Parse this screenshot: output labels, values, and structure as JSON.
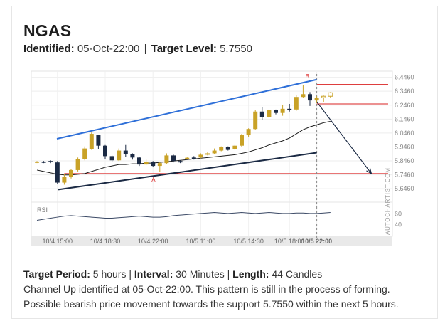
{
  "header": {
    "symbol": "NGAS",
    "identified_label": "Identified:",
    "identified_value": "05-Oct-22:00",
    "separator": "|",
    "target_label": "Target Level:",
    "target_value": "5.7550"
  },
  "chart_data": {
    "type": "candlestick",
    "y_ticks": [
      "6.4460",
      "6.3460",
      "6.2460",
      "6.1460",
      "6.0460",
      "5.9460",
      "5.8460",
      "5.7460",
      "5.6460"
    ],
    "y_tick_values": [
      6.446,
      6.346,
      6.246,
      6.146,
      6.046,
      5.946,
      5.846,
      5.746,
      5.646
    ],
    "ylim": [
      5.56,
      6.49
    ],
    "x_ticks": [
      "10/4 15:00",
      "10/4 18:30",
      "10/4 22:00",
      "10/5 11:00",
      "10/5 14:30",
      "10/5 18:00",
      "10/5 22:00"
    ],
    "rsi_label": "RSI",
    "rsi_ticks": [
      "60",
      "40"
    ],
    "rsi_tick_values": [
      60,
      40
    ],
    "rsi_values": [
      48,
      50,
      52,
      54,
      56,
      57,
      56,
      55,
      54,
      53,
      52,
      52,
      53,
      54,
      55,
      56,
      55,
      54,
      54,
      55,
      57,
      58,
      59,
      60,
      61,
      62,
      63,
      62,
      61,
      62,
      63,
      62,
      61,
      62,
      63,
      62,
      61,
      61,
      62,
      62,
      61,
      61,
      62,
      63
    ],
    "candles": [
      {
        "o": 5.835,
        "h": 5.845,
        "l": 5.83,
        "c": 5.84
      },
      {
        "o": 5.84,
        "h": 5.845,
        "l": 5.83,
        "c": 5.835
      },
      {
        "o": 5.845,
        "h": 5.85,
        "l": 5.83,
        "c": 5.84
      },
      {
        "o": 5.835,
        "h": 5.845,
        "l": 5.68,
        "c": 5.69
      },
      {
        "o": 5.69,
        "h": 5.75,
        "l": 5.675,
        "c": 5.73
      },
      {
        "o": 5.73,
        "h": 5.79,
        "l": 5.72,
        "c": 5.78
      },
      {
        "o": 5.78,
        "h": 5.87,
        "l": 5.77,
        "c": 5.86
      },
      {
        "o": 5.86,
        "h": 5.95,
        "l": 5.85,
        "c": 5.935
      },
      {
        "o": 5.93,
        "h": 6.05,
        "l": 5.925,
        "c": 6.04
      },
      {
        "o": 6.03,
        "h": 6.035,
        "l": 5.93,
        "c": 5.955
      },
      {
        "o": 5.955,
        "h": 5.96,
        "l": 5.86,
        "c": 5.88
      },
      {
        "o": 5.88,
        "h": 5.885,
        "l": 5.84,
        "c": 5.85
      },
      {
        "o": 5.85,
        "h": 5.935,
        "l": 5.845,
        "c": 5.92
      },
      {
        "o": 5.92,
        "h": 5.96,
        "l": 5.875,
        "c": 5.895
      },
      {
        "o": 5.895,
        "h": 5.9,
        "l": 5.855,
        "c": 5.87
      },
      {
        "o": 5.87,
        "h": 5.875,
        "l": 5.81,
        "c": 5.82
      },
      {
        "o": 5.82,
        "h": 5.855,
        "l": 5.815,
        "c": 5.84
      },
      {
        "o": 5.84,
        "h": 5.845,
        "l": 5.8,
        "c": 5.81
      },
      {
        "o": 5.81,
        "h": 5.84,
        "l": 5.765,
        "c": 5.83
      },
      {
        "o": 5.83,
        "h": 5.9,
        "l": 5.825,
        "c": 5.885
      },
      {
        "o": 5.885,
        "h": 5.89,
        "l": 5.835,
        "c": 5.845
      },
      {
        "o": 5.845,
        "h": 5.85,
        "l": 5.83,
        "c": 5.835
      },
      {
        "o": 5.865,
        "h": 5.875,
        "l": 5.86,
        "c": 5.868
      },
      {
        "o": 5.87,
        "h": 5.88,
        "l": 5.855,
        "c": 5.86
      },
      {
        "o": 5.87,
        "h": 5.9,
        "l": 5.865,
        "c": 5.89
      },
      {
        "o": 5.89,
        "h": 5.91,
        "l": 5.885,
        "c": 5.9
      },
      {
        "o": 5.9,
        "h": 5.935,
        "l": 5.895,
        "c": 5.92
      },
      {
        "o": 5.92,
        "h": 5.95,
        "l": 5.915,
        "c": 5.945
      },
      {
        "o": 5.945,
        "h": 5.95,
        "l": 5.92,
        "c": 5.925
      },
      {
        "o": 5.93,
        "h": 5.96,
        "l": 5.925,
        "c": 5.955
      },
      {
        "o": 5.955,
        "h": 6.04,
        "l": 5.945,
        "c": 6.03
      },
      {
        "o": 6.03,
        "h": 6.08,
        "l": 6.02,
        "c": 6.075
      },
      {
        "o": 6.075,
        "h": 6.21,
        "l": 6.07,
        "c": 6.2
      },
      {
        "o": 6.2,
        "h": 6.23,
        "l": 6.14,
        "c": 6.16
      },
      {
        "o": 6.16,
        "h": 6.215,
        "l": 6.155,
        "c": 6.21
      },
      {
        "o": 6.21,
        "h": 6.215,
        "l": 6.18,
        "c": 6.19
      },
      {
        "o": 6.19,
        "h": 6.25,
        "l": 6.17,
        "c": 6.22
      },
      {
        "o": 6.22,
        "h": 6.255,
        "l": 6.2,
        "c": 6.215
      },
      {
        "o": 6.215,
        "h": 6.32,
        "l": 6.205,
        "c": 6.305
      },
      {
        "o": 6.305,
        "h": 6.39,
        "l": 6.3,
        "c": 6.325
      },
      {
        "o": 6.325,
        "h": 6.34,
        "l": 6.24,
        "c": 6.28
      },
      {
        "o": 6.28,
        "h": 6.31,
        "l": 6.26,
        "c": 6.3
      },
      {
        "o": 6.3,
        "h": 6.315,
        "l": 6.27,
        "c": 6.31
      },
      {
        "o": 6.31,
        "h": 6.34,
        "l": 6.3,
        "c": 6.335
      }
    ],
    "ma": [
      5.78,
      5.77,
      5.76,
      5.75,
      5.745,
      5.745,
      5.75,
      5.755,
      5.77,
      5.785,
      5.8,
      5.81,
      5.82,
      5.82,
      5.825,
      5.825,
      5.83,
      5.83,
      5.835,
      5.84,
      5.845,
      5.85,
      5.855,
      5.86,
      5.865,
      5.87,
      5.875,
      5.88,
      5.885,
      5.89,
      5.9,
      5.91,
      5.925,
      5.94,
      5.96,
      5.975,
      5.99,
      6.01,
      6.04,
      6.07,
      6.09,
      6.105,
      6.12,
      6.13
    ],
    "channel_upper": {
      "from": [
        5,
        6.02
      ],
      "to": [
        41,
        6.43
      ]
    },
    "channel_lower": {
      "from": [
        5,
        5.65
      ],
      "to": [
        41,
        5.905
      ]
    },
    "target_line": 5.755,
    "resistance_line": 6.395,
    "support_line": 6.255,
    "forecast_arrow": {
      "from": [
        41,
        6.27
      ],
      "to": [
        49,
        5.755
      ]
    },
    "identified_index": 41,
    "point_a_label": "A",
    "point_b_label": "B",
    "watermark": "AUTOCHARTIST.COM",
    "colors": {
      "bull": "#c9a227",
      "bear": "#1b2a44",
      "upper": "#2e6fd8",
      "lower": "#1b2a44",
      "target": "#d92323",
      "ma": "#1b1b1b",
      "rsi": "#3c4a66"
    }
  },
  "footer": {
    "period_label": "Target Period:",
    "period_value": "5 hours",
    "interval_label": "Interval:",
    "interval_value": "30 Minutes",
    "length_label": "Length:",
    "length_value": "44 Candles",
    "sep": "|",
    "description_1": "Channel Up identified at 05-Oct-22:00. This pattern is still in the process of forming.",
    "description_2": "Possible bearish price movement towards the support 5.7550 within the next 5 hours."
  }
}
